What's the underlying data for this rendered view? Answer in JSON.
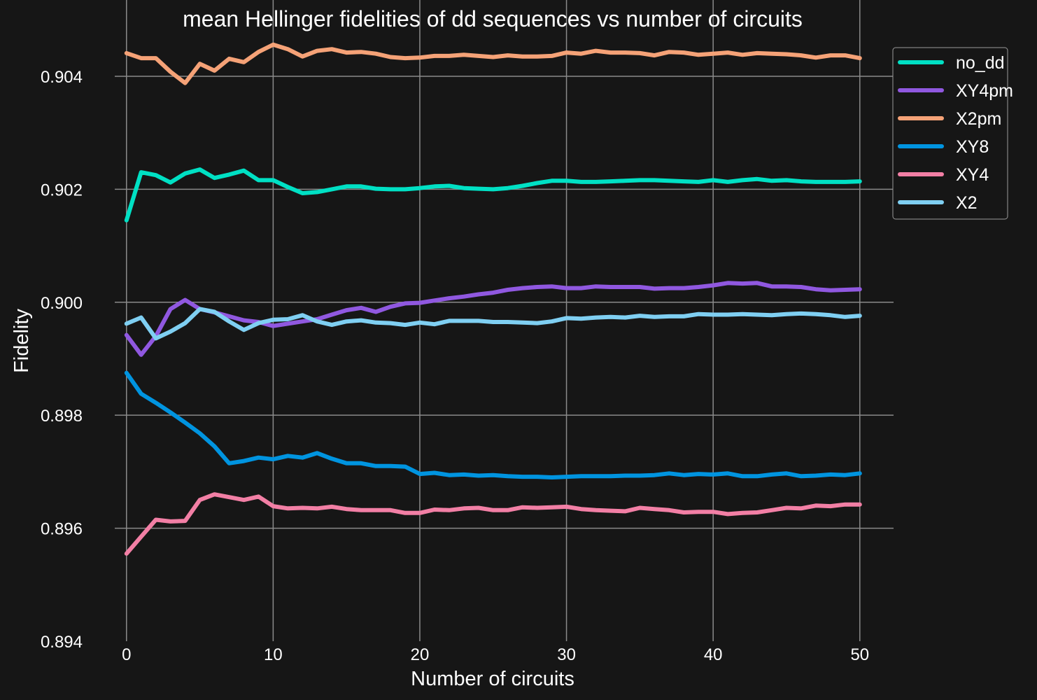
{
  "chart_data": {
    "type": "line",
    "title": "mean Hellinger fidelities of dd sequences vs number of circuits",
    "xlabel": "Number of circuits",
    "ylabel": "Fidelity",
    "xlim": [
      -0.8,
      52.3
    ],
    "ylim": [
      0.894,
      0.90535
    ],
    "xticks": [
      0,
      10,
      20,
      30,
      40,
      50
    ],
    "yticks": [
      0.894,
      0.896,
      0.898,
      0.9,
      0.902,
      0.904
    ],
    "ytick_labels": [
      "0.894",
      "0.896",
      "0.898",
      "0.900",
      "0.902",
      "0.904"
    ],
    "grid": true,
    "legend_position": "top-right",
    "series": [
      {
        "name": "no_dd",
        "color": "#00e0c4",
        "values": [
          0.90145,
          0.9023,
          0.90225,
          0.90212,
          0.90228,
          0.90235,
          0.9022,
          0.90226,
          0.90233,
          0.90216,
          0.90216,
          0.90204,
          0.90193,
          0.90195,
          0.902,
          0.90205,
          0.90205,
          0.90201,
          0.902,
          0.902,
          0.90202,
          0.90205,
          0.90206,
          0.90202,
          0.90201,
          0.902,
          0.90202,
          0.90206,
          0.90211,
          0.90215,
          0.90215,
          0.90213,
          0.90213,
          0.90214,
          0.90215,
          0.90216,
          0.90216,
          0.90215,
          0.90214,
          0.90213,
          0.90216,
          0.90213,
          0.90216,
          0.90218,
          0.90215,
          0.90216,
          0.90214,
          0.90213,
          0.90213,
          0.90213,
          0.90214
        ]
      },
      {
        "name": "XY4pm",
        "color": "#9058e0",
        "values": [
          0.89942,
          0.89907,
          0.8994,
          0.89988,
          0.90004,
          0.89988,
          0.89982,
          0.89975,
          0.89968,
          0.89965,
          0.89958,
          0.89962,
          0.89966,
          0.8997,
          0.89978,
          0.89986,
          0.8999,
          0.89983,
          0.89992,
          0.89998,
          0.89999,
          0.90003,
          0.90007,
          0.9001,
          0.90014,
          0.90017,
          0.90022,
          0.90025,
          0.90027,
          0.90028,
          0.90025,
          0.90025,
          0.90028,
          0.90027,
          0.90027,
          0.90027,
          0.90024,
          0.90025,
          0.90025,
          0.90027,
          0.9003,
          0.90034,
          0.90033,
          0.90034,
          0.90028,
          0.90028,
          0.90027,
          0.90023,
          0.90021,
          0.90022,
          0.90023
        ]
      },
      {
        "name": "X2pm",
        "color": "#f5a277",
        "values": [
          0.90441,
          0.90432,
          0.90432,
          0.90408,
          0.90388,
          0.90422,
          0.9041,
          0.90431,
          0.90425,
          0.90443,
          0.90456,
          0.90448,
          0.90435,
          0.90445,
          0.90448,
          0.90442,
          0.90443,
          0.9044,
          0.90434,
          0.90432,
          0.90433,
          0.90436,
          0.90436,
          0.90438,
          0.90436,
          0.90434,
          0.90437,
          0.90435,
          0.90435,
          0.90436,
          0.90442,
          0.9044,
          0.90445,
          0.90442,
          0.90442,
          0.90441,
          0.90437,
          0.90443,
          0.90442,
          0.90438,
          0.9044,
          0.90442,
          0.90438,
          0.90441,
          0.9044,
          0.90439,
          0.90437,
          0.90433,
          0.90437,
          0.90437,
          0.90432
        ]
      },
      {
        "name": "XY8",
        "color": "#0094e0",
        "values": [
          0.89875,
          0.89838,
          0.89822,
          0.89805,
          0.89787,
          0.89768,
          0.89745,
          0.89715,
          0.89719,
          0.89725,
          0.89722,
          0.89728,
          0.89725,
          0.89733,
          0.89723,
          0.89715,
          0.89715,
          0.8971,
          0.8971,
          0.89709,
          0.89696,
          0.89698,
          0.89694,
          0.89695,
          0.89693,
          0.89694,
          0.89692,
          0.89691,
          0.89691,
          0.8969,
          0.89691,
          0.89692,
          0.89692,
          0.89692,
          0.89693,
          0.89693,
          0.89694,
          0.89697,
          0.89694,
          0.89696,
          0.89695,
          0.89697,
          0.89692,
          0.89692,
          0.89695,
          0.89697,
          0.89692,
          0.89693,
          0.89695,
          0.89694,
          0.89697
        ]
      },
      {
        "name": "XY4",
        "color": "#f27fa5",
        "values": [
          0.89555,
          0.89585,
          0.89615,
          0.89612,
          0.89613,
          0.8965,
          0.8966,
          0.89655,
          0.8965,
          0.89656,
          0.89639,
          0.89635,
          0.89636,
          0.89635,
          0.89638,
          0.89634,
          0.89632,
          0.89632,
          0.89632,
          0.89627,
          0.89627,
          0.89633,
          0.89632,
          0.89635,
          0.89636,
          0.89632,
          0.89632,
          0.89637,
          0.89636,
          0.89637,
          0.89638,
          0.89634,
          0.89632,
          0.89631,
          0.8963,
          0.89636,
          0.89634,
          0.89632,
          0.89628,
          0.89629,
          0.89629,
          0.89625,
          0.89627,
          0.89628,
          0.89632,
          0.89636,
          0.89635,
          0.8964,
          0.89639,
          0.89642,
          0.89642
        ]
      },
      {
        "name": "X2",
        "color": "#7fcff2",
        "values": [
          0.89962,
          0.89973,
          0.89936,
          0.89948,
          0.89963,
          0.89988,
          0.89983,
          0.89966,
          0.89951,
          0.89963,
          0.89969,
          0.8997,
          0.89977,
          0.89966,
          0.8996,
          0.89966,
          0.89968,
          0.89964,
          0.89963,
          0.8996,
          0.89964,
          0.89961,
          0.89967,
          0.89967,
          0.89967,
          0.89965,
          0.89965,
          0.89964,
          0.89963,
          0.89966,
          0.89972,
          0.89971,
          0.89973,
          0.89974,
          0.89973,
          0.89976,
          0.89974,
          0.89975,
          0.89975,
          0.89979,
          0.89978,
          0.89978,
          0.89979,
          0.89978,
          0.89977,
          0.89979,
          0.8998,
          0.89979,
          0.89977,
          0.89974,
          0.89976
        ]
      }
    ]
  }
}
